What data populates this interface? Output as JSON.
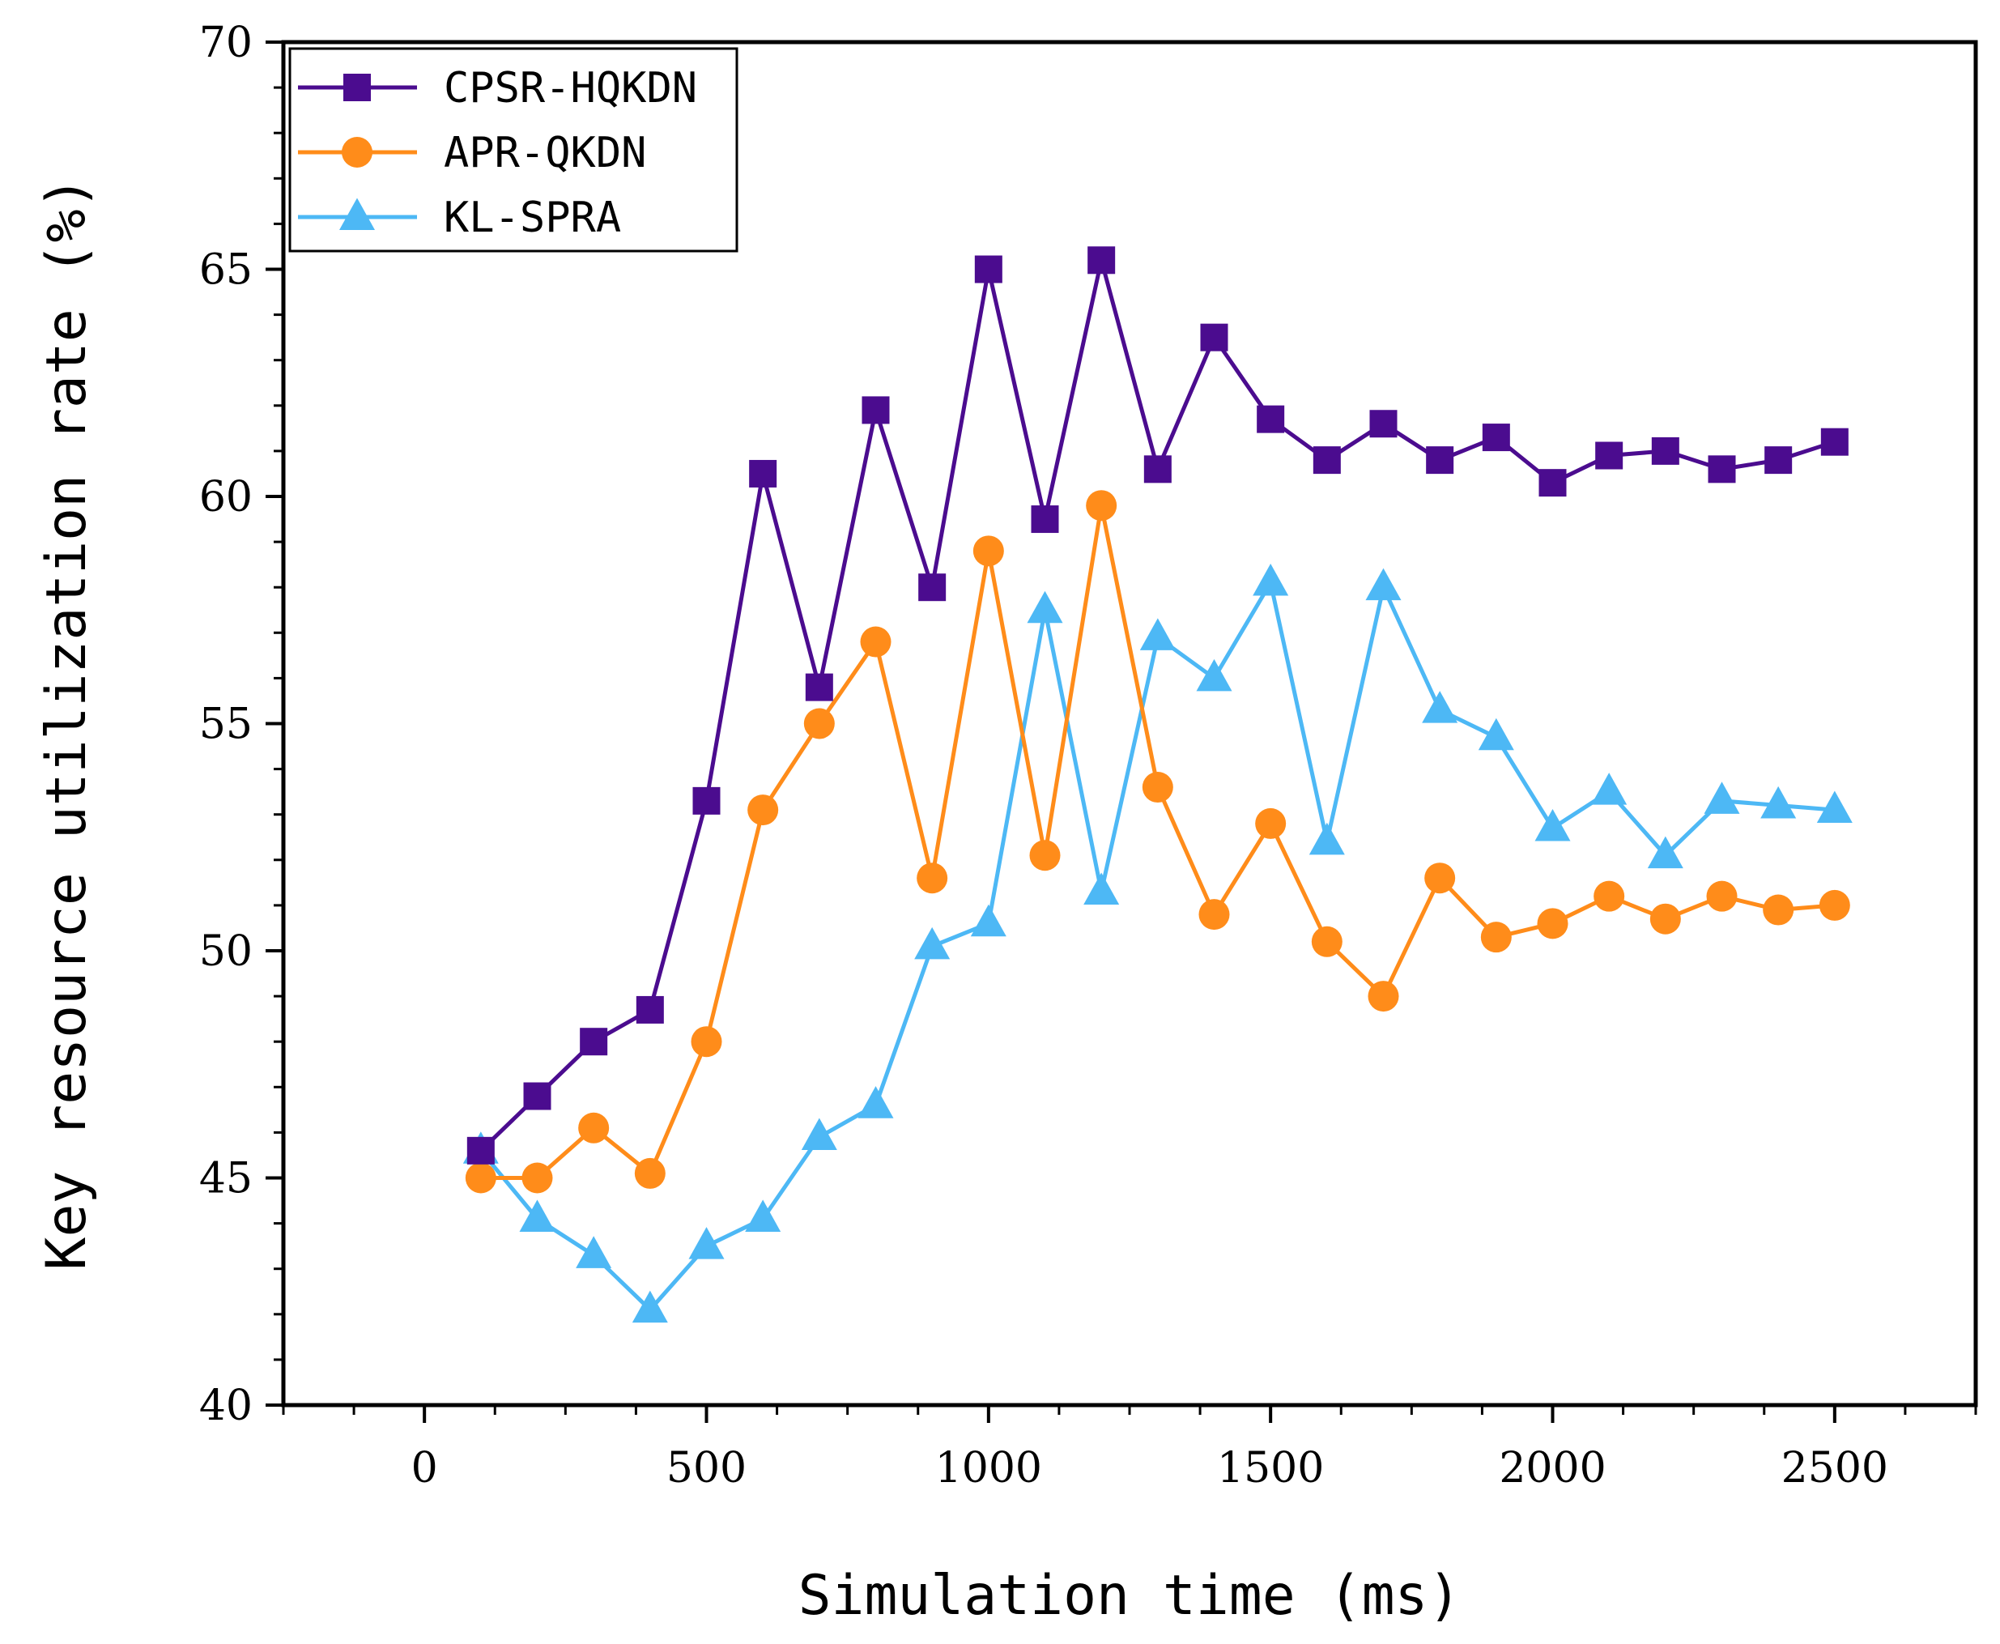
{
  "chart_data": {
    "type": "line",
    "title": "",
    "xlabel": "Simulation time (ms)",
    "ylabel": "Key resource utilization rate (%)",
    "xlim": [
      -250,
      2750
    ],
    "ylim": [
      40,
      70
    ],
    "xticks": [
      0,
      500,
      1000,
      1500,
      2000,
      2500
    ],
    "yticks": [
      40,
      45,
      50,
      55,
      60,
      65,
      70
    ],
    "x": [
      100,
      200,
      300,
      400,
      500,
      600,
      700,
      800,
      900,
      1000,
      1100,
      1200,
      1300,
      1400,
      1500,
      1600,
      1700,
      1800,
      1900,
      2000,
      2100,
      2200,
      2300,
      2400,
      2500
    ],
    "legend_position": "top-left",
    "series": [
      {
        "name": "CPSR-HQKDN",
        "color": "#4B0C8F",
        "marker": "square",
        "values": [
          45.6,
          46.8,
          48.0,
          48.7,
          53.3,
          60.5,
          55.8,
          61.9,
          58.0,
          65.0,
          59.5,
          65.2,
          60.6,
          63.5,
          61.7,
          60.8,
          61.6,
          60.8,
          61.3,
          60.3,
          60.9,
          61.0,
          60.6,
          60.8,
          61.2
        ]
      },
      {
        "name": "APR-QKDN",
        "color": "#FF8C1A",
        "marker": "circle",
        "values": [
          45.0,
          45.0,
          46.1,
          45.1,
          48.0,
          53.1,
          55.0,
          56.8,
          51.6,
          58.8,
          52.1,
          59.8,
          53.6,
          50.8,
          52.8,
          50.2,
          49.0,
          51.6,
          50.3,
          50.6,
          51.2,
          50.7,
          51.2,
          50.9,
          51.0
        ]
      },
      {
        "name": "KL-SPRA",
        "color": "#4DB8F5",
        "marker": "triangle",
        "values": [
          45.6,
          44.1,
          43.3,
          42.1,
          43.5,
          44.1,
          45.9,
          46.6,
          50.1,
          50.6,
          57.5,
          51.3,
          56.9,
          56.0,
          58.1,
          52.4,
          58.0,
          55.3,
          54.7,
          52.7,
          53.5,
          52.1,
          53.3,
          53.2,
          53.1
        ]
      }
    ]
  }
}
